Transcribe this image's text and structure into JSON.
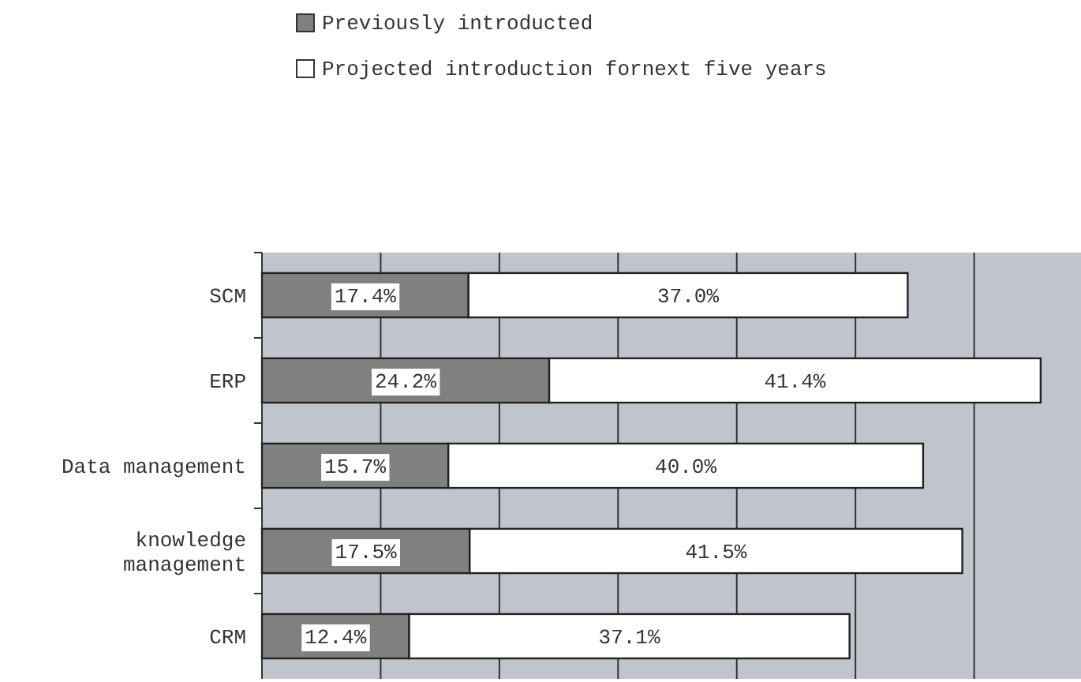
{
  "chart_data": {
    "type": "bar",
    "orientation": "horizontal",
    "stacked": true,
    "categories": [
      "SCM",
      "ERP",
      "Data management",
      "knowledge\nmanagement",
      "CRM"
    ],
    "series": [
      {
        "name": "Previously introducted",
        "color": "#808080",
        "values": [
          17.4,
          24.2,
          15.7,
          17.5,
          12.4
        ],
        "value_labels": [
          "17.4%",
          "24.2%",
          "15.7%",
          "17.5%",
          "12.4%"
        ]
      },
      {
        "name": "Projected introduction fornext five years",
        "color": "#ffffff",
        "values": [
          37.0,
          41.4,
          40.0,
          41.5,
          37.1
        ],
        "value_labels": [
          "37.0%",
          "41.4%",
          "40.0%",
          "41.5%",
          "37.1%"
        ]
      }
    ],
    "xlim": [
      0,
      69
    ],
    "xticks": [
      {
        "value": 10,
        "label": null
      },
      {
        "value": 20,
        "label": null
      },
      {
        "value": 30,
        "label": null
      },
      {
        "value": 40,
        "label": null
      },
      {
        "value": 50,
        "label": null
      },
      {
        "value": 60,
        "label": null
      }
    ],
    "grid": "x",
    "legend": "top",
    "tick_labels": "y"
  }
}
